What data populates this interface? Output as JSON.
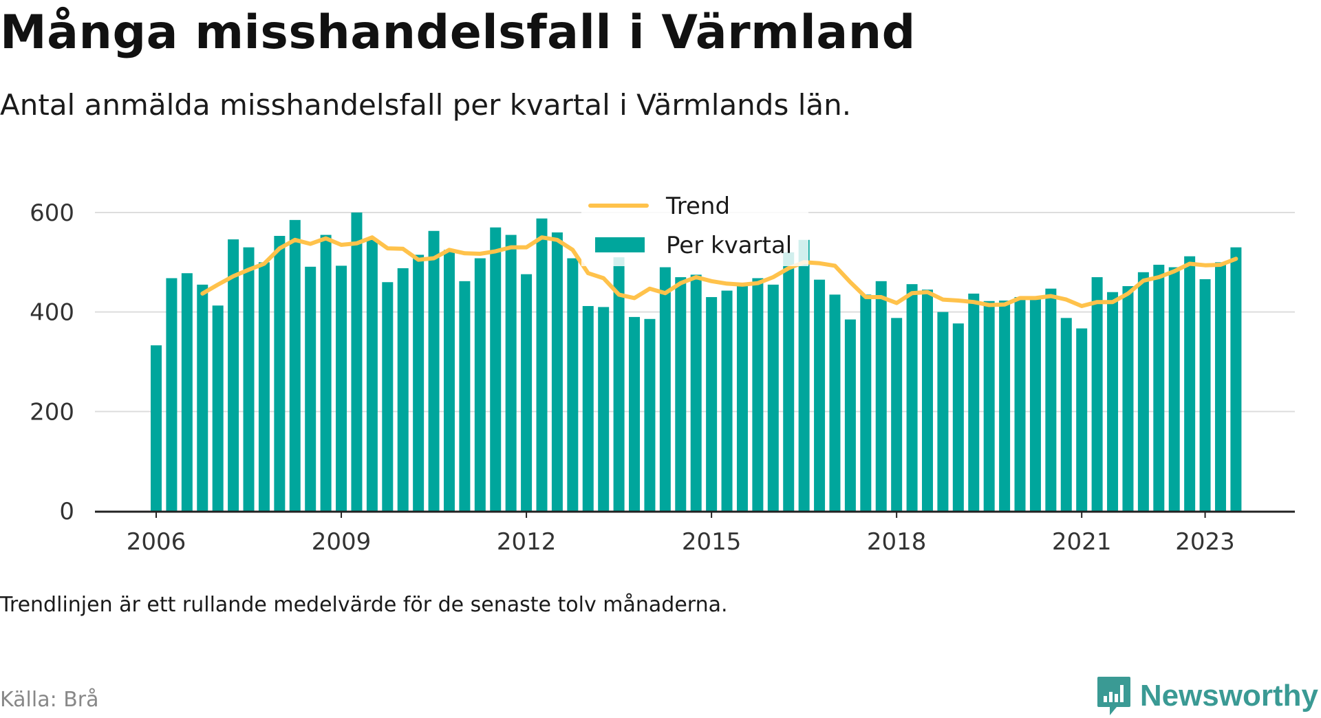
{
  "title": "Många misshandelsfall i Värmland",
  "subtitle": "Antal anmälda misshandelsfall per kvartal i Värmlands län.",
  "footnote": "Trendlinjen är ett rullande medelvärde för de senaste tolv månaderna.",
  "source": "Källa: Brå",
  "brand": {
    "name": "Newsworthy",
    "icon": "newsworthy-logo-icon"
  },
  "colors": {
    "bar": "#00a69c",
    "trend": "#ffc24b",
    "grid": "#dddddd",
    "axis": "#222222"
  },
  "chart_data": {
    "type": "bar",
    "ylim": [
      0,
      600
    ],
    "yticks": [
      0,
      200,
      400,
      600
    ],
    "xticks": [
      "2006",
      "2009",
      "2012",
      "2015",
      "2018",
      "2021",
      "2023"
    ],
    "grid": true,
    "legend_position": "top-center",
    "categories": [
      "2006Q1",
      "2006Q2",
      "2006Q3",
      "2006Q4",
      "2007Q1",
      "2007Q2",
      "2007Q3",
      "2007Q4",
      "2008Q1",
      "2008Q2",
      "2008Q3",
      "2008Q4",
      "2009Q1",
      "2009Q2",
      "2009Q3",
      "2009Q4",
      "2010Q1",
      "2010Q2",
      "2010Q3",
      "2010Q4",
      "2011Q1",
      "2011Q2",
      "2011Q3",
      "2011Q4",
      "2012Q1",
      "2012Q2",
      "2012Q3",
      "2012Q4",
      "2013Q1",
      "2013Q2",
      "2013Q3",
      "2013Q4",
      "2014Q1",
      "2014Q2",
      "2014Q3",
      "2014Q4",
      "2015Q1",
      "2015Q2",
      "2015Q3",
      "2015Q4",
      "2016Q1",
      "2016Q2",
      "2016Q3",
      "2016Q4",
      "2017Q1",
      "2017Q2",
      "2017Q3",
      "2017Q4",
      "2018Q1",
      "2018Q2",
      "2018Q3",
      "2018Q4",
      "2019Q1",
      "2019Q2",
      "2019Q3",
      "2019Q4",
      "2020Q1",
      "2020Q2",
      "2020Q3",
      "2020Q4",
      "2021Q1",
      "2021Q2",
      "2021Q3",
      "2021Q4",
      "2022Q1",
      "2022Q2",
      "2022Q3",
      "2022Q4",
      "2023Q1",
      "2023Q2",
      "2023Q3",
      "2023Q4"
    ],
    "series": [
      {
        "name": "Per kvartal",
        "values": [
          333,
          468,
          478,
          455,
          413,
          546,
          530,
          500,
          553,
          585,
          491,
          555,
          493,
          600,
          545,
          460,
          488,
          515,
          563,
          525,
          462,
          508,
          570,
          555,
          476,
          588,
          560,
          508,
          412,
          410,
          510,
          390,
          386,
          490,
          470,
          475,
          430,
          443,
          458,
          468,
          455,
          520,
          545,
          465,
          435,
          385,
          435,
          462,
          388,
          456,
          445,
          400,
          377,
          437,
          422,
          423,
          430,
          432,
          447,
          388,
          367,
          470,
          440,
          452,
          480,
          495,
          490,
          512,
          466,
          500,
          530,
          null
        ]
      },
      {
        "name": "Trend",
        "values": [
          null,
          null,
          null,
          437,
          455,
          472,
          485,
          497,
          528,
          545,
          537,
          548,
          535,
          538,
          550,
          528,
          527,
          505,
          508,
          525,
          518,
          517,
          522,
          530,
          530,
          550,
          545,
          525,
          478,
          468,
          435,
          428,
          447,
          438,
          458,
          470,
          462,
          457,
          455,
          458,
          470,
          488,
          500,
          498,
          493,
          460,
          430,
          430,
          418,
          438,
          440,
          425,
          423,
          420,
          414,
          415,
          428,
          428,
          432,
          425,
          412,
          420,
          420,
          437,
          463,
          470,
          482,
          497,
          494,
          495,
          507,
          null
        ]
      }
    ]
  }
}
